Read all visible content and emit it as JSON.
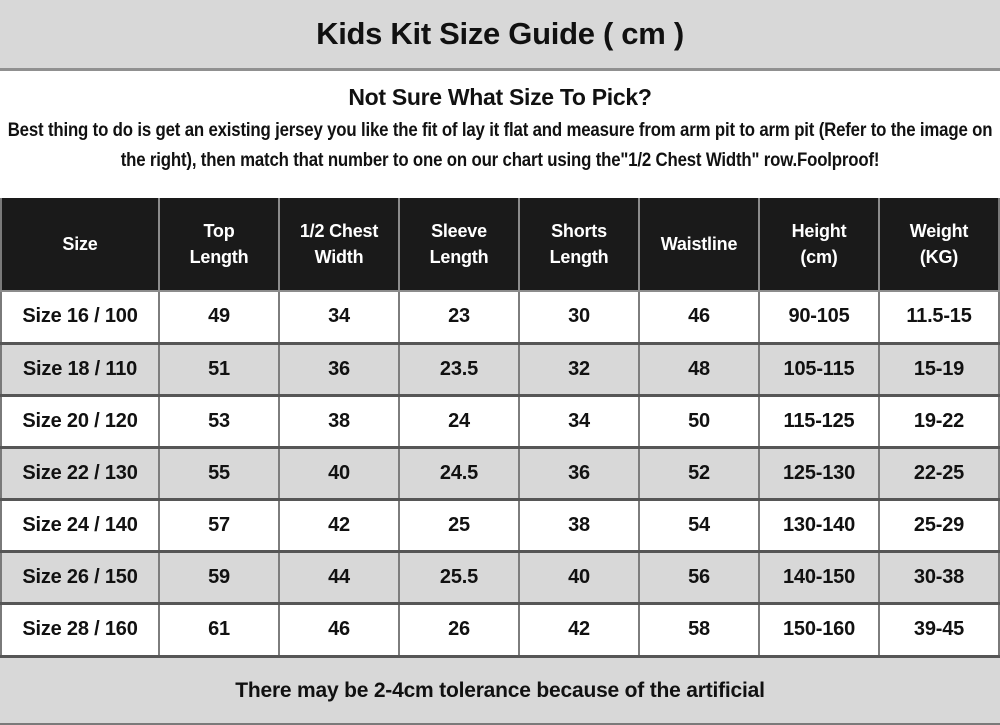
{
  "title": "Kids Kit Size Guide ( cm )",
  "intro": {
    "heading": "Not Sure What Size To Pick?",
    "body": "Best thing to do is get an existing jersey you like the fit of lay it flat and measure from arm pit to arm pit (Refer to the image on the right), then match that number to one on our chart using the\"1/2 Chest Width\" row.Foolproof!"
  },
  "chart_data": {
    "type": "table",
    "title": "Kids Kit Size Guide ( cm )",
    "columns": [
      "Size",
      "Top Length",
      "1/2 Chest Width",
      "Sleeve Length",
      "Shorts Length",
      "Waistline",
      "Height (cm)",
      "Weight (KG)"
    ],
    "rows": [
      [
        "Size 16 / 100",
        "49",
        "34",
        "23",
        "30",
        "46",
        "90-105",
        "11.5-15"
      ],
      [
        "Size 18 / 110",
        "51",
        "36",
        "23.5",
        "32",
        "48",
        "105-115",
        "15-19"
      ],
      [
        "Size 20 / 120",
        "53",
        "38",
        "24",
        "34",
        "50",
        "115-125",
        "19-22"
      ],
      [
        "Size 22 / 130",
        "55",
        "40",
        "24.5",
        "36",
        "52",
        "125-130",
        "22-25"
      ],
      [
        "Size 24 / 140",
        "57",
        "42",
        "25",
        "38",
        "54",
        "130-140",
        "25-29"
      ],
      [
        "Size 26 / 150",
        "59",
        "44",
        "25.5",
        "40",
        "56",
        "140-150",
        "30-38"
      ],
      [
        "Size 28 / 160",
        "61",
        "46",
        "26",
        "42",
        "58",
        "150-160",
        "39-45"
      ]
    ]
  },
  "footer": "There may be 2-4cm tolerance because of the artificial",
  "colors": {
    "header_bg": "#1a1a1a",
    "band_bg": "#d8d8d8",
    "stripe_bg": "#d8d8d8",
    "border_dark": "#565656",
    "border_light": "#8c8c8c",
    "text": "#111111"
  }
}
